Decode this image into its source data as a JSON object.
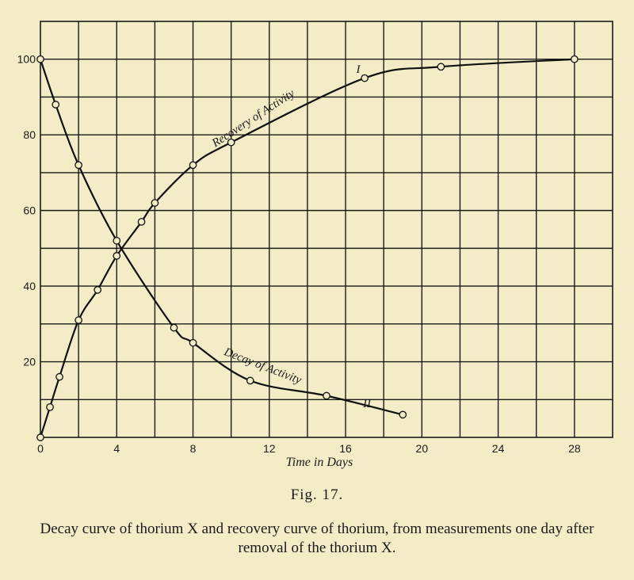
{
  "chart_data": {
    "type": "line",
    "xlabel": "Time in Days",
    "ylabel": "",
    "xlim": [
      0,
      30
    ],
    "ylim": [
      0,
      110
    ],
    "x_ticks": [
      0,
      4,
      8,
      12,
      16,
      20,
      24,
      28
    ],
    "y_ticks": [
      20,
      40,
      60,
      80,
      100
    ],
    "x_minor_step": 2,
    "y_minor_step": 10,
    "grid": true,
    "series": [
      {
        "name": "Recovery of Activity",
        "tag": "I",
        "x": [
          0,
          0.5,
          1,
          2,
          3,
          4,
          5.3,
          6,
          8,
          10,
          17,
          21,
          28
        ],
        "y": [
          0,
          8,
          16,
          31,
          39,
          48,
          57,
          62,
          72,
          78,
          95,
          98,
          100
        ]
      },
      {
        "name": "Decay of Activity",
        "tag": "II",
        "x": [
          0,
          0.8,
          2,
          4,
          7,
          8,
          11,
          15,
          19
        ],
        "y": [
          100,
          88,
          72,
          52,
          29,
          25,
          15,
          11,
          6
        ]
      }
    ]
  },
  "figure": {
    "label": "Fig. 17.",
    "caption": "Decay curve of thorium X and recovery curve of thorium, from measurements one day after removal of the thorium X."
  }
}
